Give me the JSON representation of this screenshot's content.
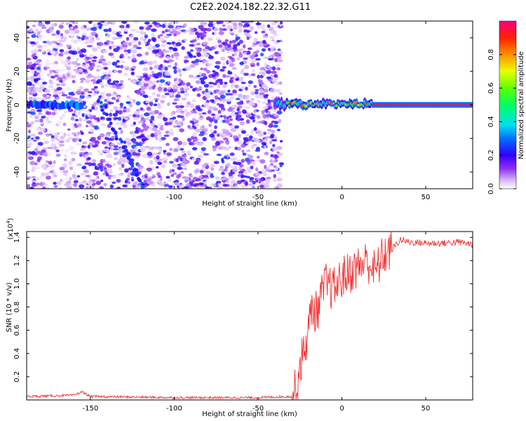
{
  "title": "C2E2.2024.182.22.32.G11",
  "chart_data": [
    {
      "type": "heatmap",
      "xlabel": "Height of straight line (km)",
      "ylabel": "Frequency (Hz)",
      "xlim": [
        -188,
        78
      ],
      "ylim": [
        -50,
        50
      ],
      "xticks": [
        -150,
        -100,
        -50,
        0,
        50
      ],
      "yticks": [
        -40,
        -20,
        0,
        20,
        40
      ],
      "colorbar": {
        "label": "Normalized spectral amplitude",
        "range": [
          0,
          1
        ],
        "ticks": [
          0.0,
          0.2,
          0.4,
          0.6,
          0.8
        ]
      },
      "features": [
        {
          "name": "noise-field",
          "x_range": [
            -188,
            -36
          ],
          "y_range": [
            -50,
            50
          ]
        },
        {
          "name": "early-signal",
          "x_range": [
            -188,
            -155
          ],
          "frequency": 0,
          "amplitude": 0.3
        },
        {
          "name": "diagonal-track",
          "points": [
            [
              -145,
              3
            ],
            [
              -128,
              -30
            ],
            [
              -118,
              -50
            ]
          ]
        },
        {
          "name": "strong-signal",
          "x_range": [
            -40,
            78
          ],
          "frequency": 0,
          "amplitude": 0.95
        }
      ]
    },
    {
      "type": "line",
      "xlabel": "Height of straight line (km)",
      "ylabel": "SNR (10 * v/v)",
      "y_multiplier": "(x10",
      "y_multiplier_exp": "4",
      "y_multiplier_close": ")",
      "xlim": [
        -188,
        78
      ],
      "ylim": [
        0,
        1.45
      ],
      "xticks": [
        -150,
        -100,
        -50,
        0,
        50
      ],
      "yticks": [
        0.2,
        0.4,
        0.6,
        0.8,
        1.0,
        1.2,
        1.4
      ],
      "series": [
        {
          "color": "#ee3333",
          "points": [
            [
              -188,
              0.03
            ],
            [
              -160,
              0.04
            ],
            [
              -155,
              0.07
            ],
            [
              -150,
              0.03
            ],
            [
              -100,
              0.02
            ],
            [
              -50,
              0.02
            ],
            [
              -30,
              0.03
            ],
            [
              -27,
              0.1
            ],
            [
              -25,
              0.3
            ],
            [
              -22,
              0.45
            ],
            [
              -20,
              0.6
            ],
            [
              -18,
              0.8
            ],
            [
              -15,
              0.75
            ],
            [
              -12,
              0.9
            ],
            [
              -10,
              1.0
            ],
            [
              -5,
              0.95
            ],
            [
              0,
              1.05
            ],
            [
              5,
              1.1
            ],
            [
              10,
              1.15
            ],
            [
              15,
              1.2
            ],
            [
              20,
              1.1
            ],
            [
              25,
              1.25
            ],
            [
              30,
              1.3
            ],
            [
              35,
              1.38
            ],
            [
              40,
              1.36
            ],
            [
              50,
              1.35
            ],
            [
              60,
              1.35
            ],
            [
              70,
              1.36
            ],
            [
              78,
              1.34
            ]
          ]
        }
      ]
    }
  ]
}
